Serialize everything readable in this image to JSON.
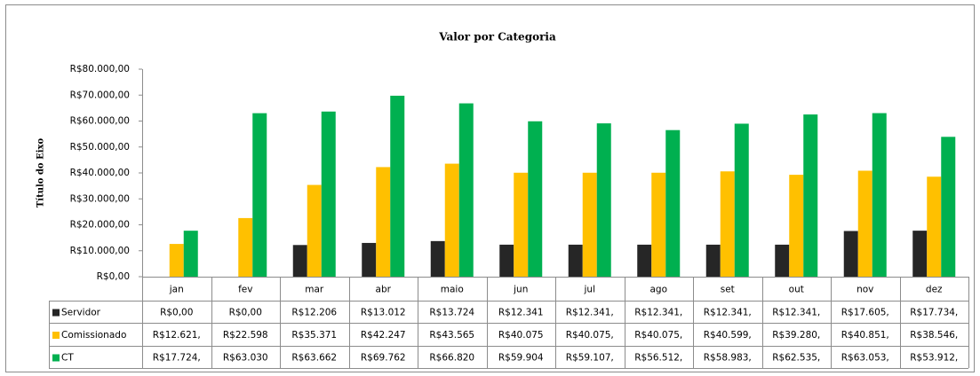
{
  "chart_data": {
    "type": "bar",
    "title": "Valor por Categoria",
    "y_label": "Título do Eixo",
    "categories": [
      "jan",
      "fev",
      "mar",
      "abr",
      "maio",
      "jun",
      "jul",
      "ago",
      "set",
      "out",
      "nov",
      "dez"
    ],
    "series": [
      {
        "name": "Servidor",
        "color": "#262626",
        "values": [
          0,
          0,
          12206,
          13012,
          13724,
          12341,
          12341,
          12341,
          12341,
          12341,
          17605,
          17734
        ],
        "value_labels": [
          "R$0,00",
          "R$0,00",
          "R$12.206",
          "R$13.012",
          "R$13.724",
          "R$12.341",
          "R$12.341,",
          "R$12.341,",
          "R$12.341,",
          "R$12.341,",
          "R$17.605,",
          "R$17.734,"
        ]
      },
      {
        "name": "Comissionado",
        "color": "#ffc000",
        "values": [
          12621,
          22598,
          35371,
          42247,
          43565,
          40075,
          40075,
          40075,
          40599,
          39280,
          40851,
          38546
        ],
        "value_labels": [
          "R$12.621,",
          "R$22.598",
          "R$35.371",
          "R$42.247",
          "R$43.565",
          "R$40.075",
          "R$40.075,",
          "R$40.075,",
          "R$40.599,",
          "R$39.280,",
          "R$40.851,",
          "R$38.546,"
        ]
      },
      {
        "name": "CT",
        "color": "#00b050",
        "values": [
          17724,
          63030,
          63662,
          69762,
          66820,
          59904,
          59107,
          56512,
          58983,
          62535,
          63053,
          53912
        ],
        "value_labels": [
          "R$17.724,",
          "R$63.030",
          "R$63.662",
          "R$69.762",
          "R$66.820",
          "R$59.904",
          "R$59.107,",
          "R$56.512,",
          "R$58.983,",
          "R$62.535,",
          "R$63.053,",
          "R$53.912,"
        ]
      }
    ],
    "ylim": [
      0,
      80000
    ],
    "yticks": [
      {
        "value": 0,
        "label": "R$0,00"
      },
      {
        "value": 10000,
        "label": "R$10.000,00"
      },
      {
        "value": 20000,
        "label": "R$20.000,00"
      },
      {
        "value": 30000,
        "label": "R$30.000,00"
      },
      {
        "value": 40000,
        "label": "R$40.000,00"
      },
      {
        "value": 50000,
        "label": "R$50.000,00"
      },
      {
        "value": 60000,
        "label": "R$60.000,00"
      },
      {
        "value": 70000,
        "label": "R$70.000,00"
      },
      {
        "value": 80000,
        "label": "R$80.000,00"
      }
    ]
  }
}
